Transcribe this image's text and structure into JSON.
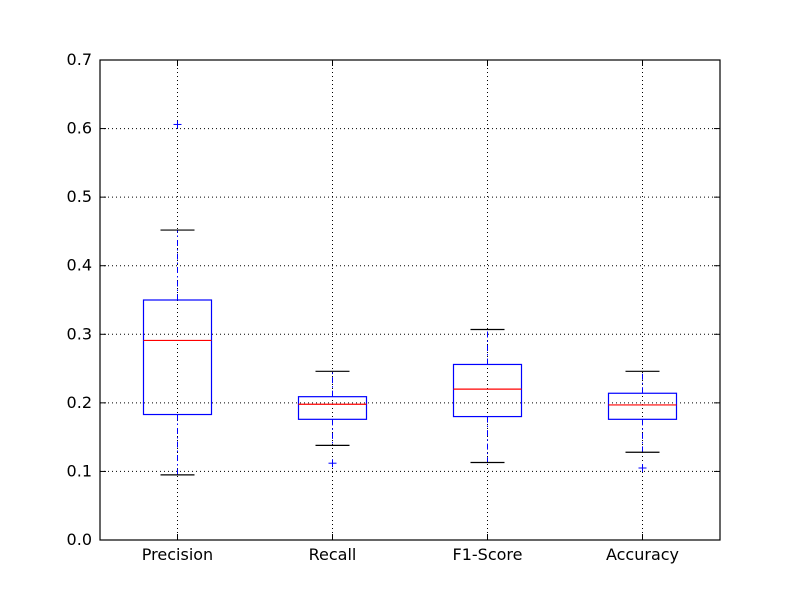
{
  "chart_data": {
    "type": "box",
    "categories": [
      "Precision",
      "Recall",
      "F1-Score",
      "Accuracy"
    ],
    "boxes": [
      {
        "name": "Precision",
        "whisker_low": 0.095,
        "q1": 0.183,
        "median": 0.291,
        "q3": 0.35,
        "whisker_high": 0.452,
        "outliers": [
          0.606
        ]
      },
      {
        "name": "Recall",
        "whisker_low": 0.138,
        "q1": 0.176,
        "median": 0.198,
        "q3": 0.209,
        "whisker_high": 0.246,
        "outliers": [
          0.112
        ]
      },
      {
        "name": "F1-Score",
        "whisker_low": 0.113,
        "q1": 0.18,
        "median": 0.22,
        "q3": 0.256,
        "whisker_high": 0.307,
        "outliers": []
      },
      {
        "name": "Accuracy",
        "whisker_low": 0.128,
        "q1": 0.176,
        "median": 0.197,
        "q3": 0.214,
        "whisker_high": 0.246,
        "outliers": [
          0.105
        ]
      }
    ],
    "ylim": [
      0.0,
      0.7
    ],
    "yticks": [
      "0.0",
      "0.1",
      "0.2",
      "0.3",
      "0.4",
      "0.5",
      "0.6",
      "0.7"
    ],
    "grid": true,
    "title": "",
    "xlabel": "",
    "ylabel": "",
    "colors": {
      "box": "#0000ff",
      "median": "#ff0000",
      "whisker": "#0000ff",
      "cap": "#000000",
      "outlier": "#0000ff"
    }
  }
}
